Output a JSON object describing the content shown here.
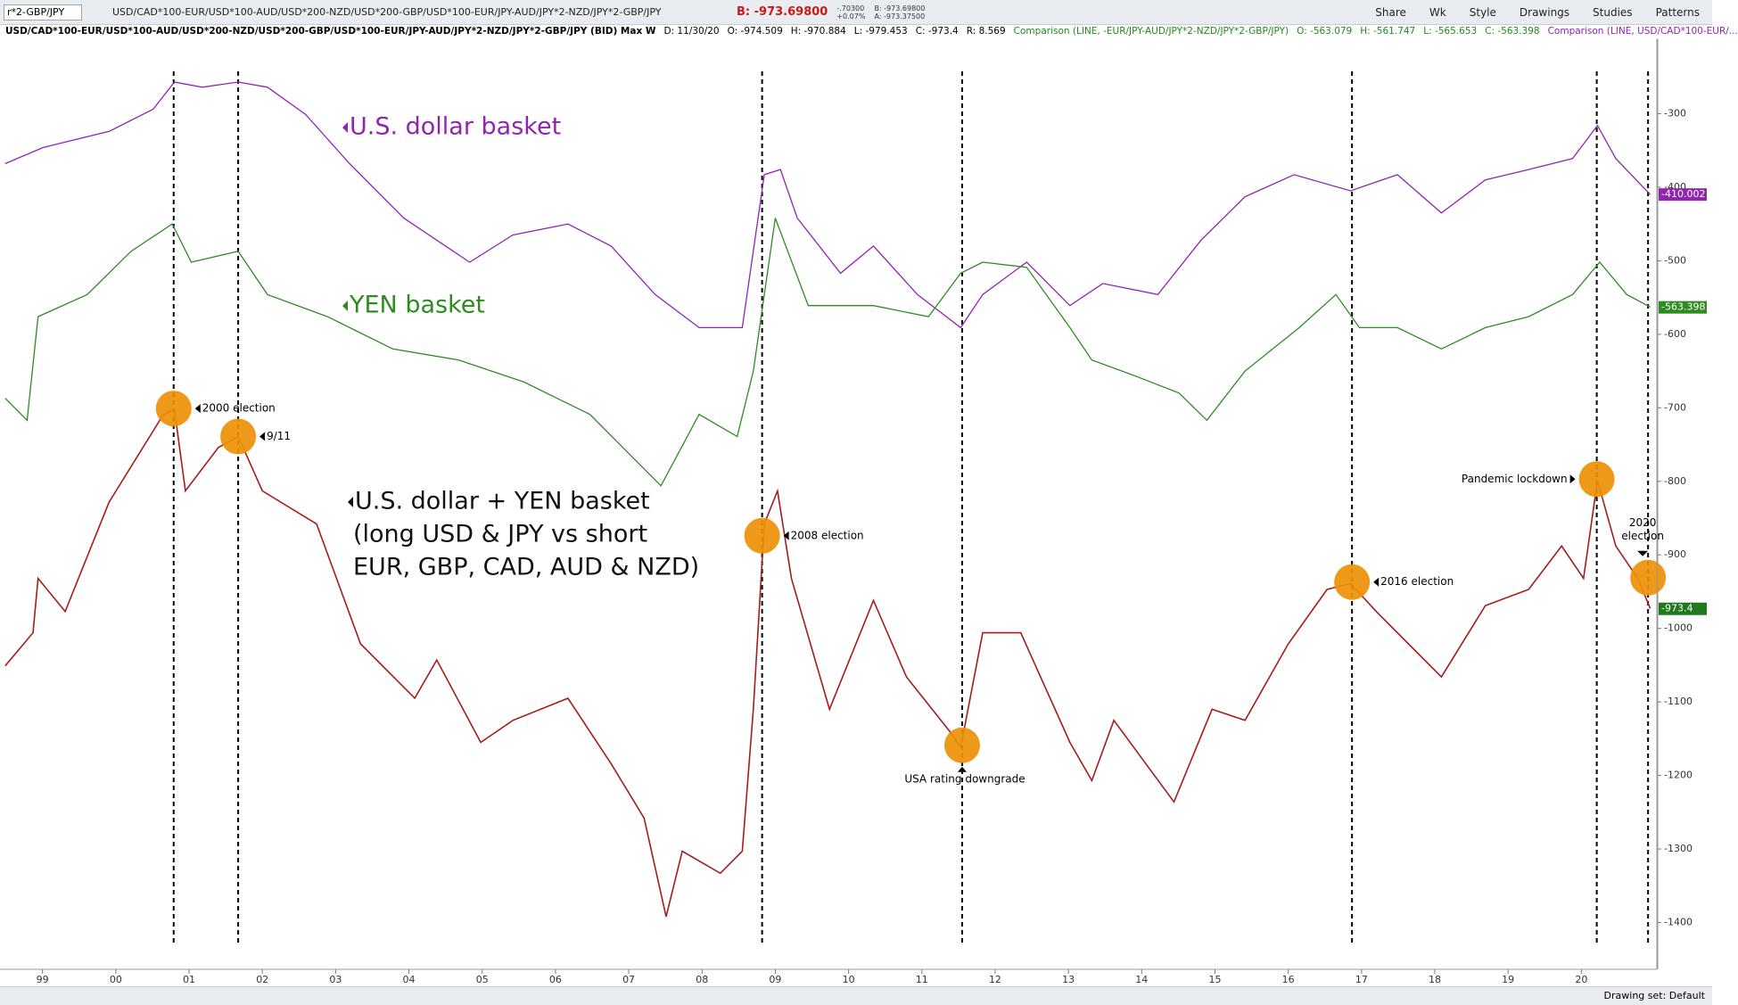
{
  "ui": {
    "symbol": "r*2-GBP/JPY",
    "description": "USD/CAD*100-EUR/USD*100-AUD/USD*200-NZD/USD*200-GBP/USD*100-EUR/JPY-AUD/JPY*2-NZD/JPY*2-GBP/JPY",
    "bid": "B: -973.69800",
    "change": "-.70300",
    "change_pct": "+0.07%",
    "bid_small": "B: -973.69800",
    "ask_small": "A: -973.37500",
    "buttons": [
      "Share",
      "Wk",
      "Style",
      "Drawings",
      "Studies",
      "Patterns"
    ],
    "study_title": "USD/CAD*100-EUR/USD*100-AUD/USD*200-NZD/USD*200-GBP/USD*100-EUR/JPY-AUD/JPY*2-NZD/JPY*2-GBP/JPY (BID) Max W",
    "info": [
      "D: 11/30/20",
      "O: -974.509",
      "H: -970.884",
      "L: -979.453",
      "C: -973.4",
      "R: 8.569"
    ],
    "comparison1": "Comparison (LINE, -EUR/JPY-AUD/JPY*2-NZD/JPY*2-GBP/JPY)",
    "comparison1_info": [
      "O: -563.079",
      "H: -561.747",
      "L: -565.653",
      "C: -563.398"
    ],
    "comparison2": "Comparison (LINE, USD/CAD*100-EUR/...",
    "drawing_set": "Drawing set: Default"
  },
  "chart_data": {
    "type": "line",
    "xlim": [
      1998.42,
      2021.03
    ],
    "ylim": [
      -1460,
      -200
    ],
    "xticks": [
      {
        "value": 1999,
        "label": "99"
      },
      {
        "value": 2000,
        "label": "00"
      },
      {
        "value": 2001,
        "label": "01"
      },
      {
        "value": 2002,
        "label": "02"
      },
      {
        "value": 2003,
        "label": "03"
      },
      {
        "value": 2004,
        "label": "04"
      },
      {
        "value": 2005,
        "label": "05"
      },
      {
        "value": 2006,
        "label": "06"
      },
      {
        "value": 2007,
        "label": "07"
      },
      {
        "value": 2008,
        "label": "08"
      },
      {
        "value": 2009,
        "label": "09"
      },
      {
        "value": 2010,
        "label": "10"
      },
      {
        "value": 2011,
        "label": "11"
      },
      {
        "value": 2012,
        "label": "12"
      },
      {
        "value": 2013,
        "label": "13"
      },
      {
        "value": 2014,
        "label": "14"
      },
      {
        "value": 2015,
        "label": "15"
      },
      {
        "value": 2016,
        "label": "16"
      },
      {
        "value": 2017,
        "label": "17"
      },
      {
        "value": 2018,
        "label": "18"
      },
      {
        "value": 2019,
        "label": "19"
      },
      {
        "value": 2020,
        "label": "20"
      }
    ],
    "yticks": [
      -300,
      -400,
      -500,
      -600,
      -700,
      -800,
      -900,
      -1000,
      -1100,
      -1200,
      -1300,
      -1400
    ],
    "grid": false,
    "series": [
      {
        "name": "U.S. dollar basket",
        "color": "#9025b0",
        "last": -410.002,
        "x": [
          1998.49,
          1999.01,
          1999.91,
          2000.51,
          2000.8,
          2001.18,
          2001.67,
          2002.07,
          2002.59,
          2003.19,
          2003.93,
          2004.83,
          2005.42,
          2006.17,
          2006.76,
          2007.36,
          2007.96,
          2008.55,
          2008.85,
          2009.07,
          2009.3,
          2009.89,
          2010.34,
          2010.94,
          2011.53,
          2011.83,
          2012.43,
          2013.02,
          2013.47,
          2014.22,
          2014.81,
          2015.41,
          2016.08,
          2016.85,
          2017.49,
          2018.09,
          2018.69,
          2019.28,
          2019.88,
          2020.22,
          2020.47,
          2020.94
        ],
        "values": [
          -368,
          -346,
          -324,
          -294,
          -257,
          -264,
          -257,
          -264,
          -301,
          -368,
          -442,
          -502,
          -465,
          -450,
          -480,
          -546,
          -591,
          -591,
          -383,
          -376,
          -442,
          -517,
          -480,
          -546,
          -591,
          -546,
          -502,
          -561,
          -531,
          -546,
          -472,
          -413,
          -383,
          -405,
          -383,
          -435,
          -390,
          -376,
          -361,
          -316,
          -361,
          -410
        ]
      },
      {
        "name": "YEN basket",
        "color": "#2e8b22",
        "last": -563.398,
        "x": [
          1998.49,
          1998.79,
          1998.94,
          1999.61,
          2000.21,
          2000.77,
          2001.03,
          2001.67,
          2002.07,
          2002.89,
          2003.78,
          2004.68,
          2005.57,
          2006.47,
          2007.44,
          2007.96,
          2008.48,
          2008.7,
          2009.0,
          2009.45,
          2010.34,
          2011.09,
          2011.53,
          2011.83,
          2012.43,
          2013.02,
          2013.32,
          2013.92,
          2014.51,
          2014.89,
          2015.41,
          2016.15,
          2016.65,
          2016.97,
          2017.49,
          2018.09,
          2018.69,
          2019.28,
          2019.88,
          2020.25,
          2020.62,
          2020.94
        ],
        "values": [
          -687,
          -717,
          -576,
          -546,
          -487,
          -450,
          -502,
          -487,
          -546,
          -576,
          -620,
          -635,
          -665,
          -709,
          -806,
          -709,
          -739,
          -650,
          -442,
          -561,
          -561,
          -576,
          -517,
          -502,
          -509,
          -591,
          -635,
          -657,
          -680,
          -717,
          -650,
          -591,
          -546,
          -591,
          -591,
          -620,
          -591,
          -576,
          -546,
          -502,
          -546,
          -563
        ]
      },
      {
        "name": "U.S. dollar + YEN basket",
        "note_lines": [
          "(long USD & JPY vs short",
          "EUR, GBP, CAD, AUD & NZD)"
        ],
        "color": "#a51c1c",
        "last": -973.4,
        "x": [
          1998.49,
          1998.87,
          1998.94,
          1999.31,
          1999.91,
          2000.65,
          2000.8,
          2000.95,
          2001.4,
          2001.67,
          2002.0,
          2002.74,
          2003.34,
          2004.08,
          2004.38,
          2004.98,
          2005.42,
          2006.17,
          2006.76,
          2007.21,
          2007.51,
          2007.73,
          2008.25,
          2008.55,
          2008.7,
          2008.85,
          2009.03,
          2009.22,
          2009.74,
          2010.34,
          2010.79,
          2011.38,
          2011.53,
          2011.83,
          2012.35,
          2013.02,
          2013.32,
          2013.62,
          2014.44,
          2014.96,
          2015.41,
          2016.0,
          2016.53,
          2016.85,
          2017.2,
          2017.64,
          2018.09,
          2018.69,
          2019.28,
          2019.73,
          2020.03,
          2020.22,
          2020.47,
          2020.77,
          2020.94
        ],
        "values": [
          -1051,
          -1006,
          -932,
          -977,
          -828,
          -709,
          -702,
          -813,
          -754,
          -739,
          -813,
          -858,
          -1021,
          -1095,
          -1043,
          -1155,
          -1125,
          -1095,
          -1184,
          -1258,
          -1392,
          -1303,
          -1333,
          -1303,
          -1110,
          -858,
          -813,
          -932,
          -1110,
          -962,
          -1066,
          -1140,
          -1162,
          -1006,
          -1006,
          -1155,
          -1207,
          -1125,
          -1236,
          -1110,
          -1125,
          -1021,
          -947,
          -939,
          -977,
          -1021,
          -1066,
          -969,
          -947,
          -888,
          -932,
          -799,
          -888,
          -932,
          -973
        ]
      }
    ],
    "events": [
      {
        "label": "2000 election",
        "x": 2000.79,
        "y": -701
      },
      {
        "label": "9/11",
        "x": 2001.67,
        "y": -739
      },
      {
        "label": "2008 election",
        "x": 2008.82,
        "y": -874
      },
      {
        "label": "USA rating downgrade",
        "x": 2011.55,
        "y": -1159
      },
      {
        "label": "2016 election",
        "x": 2016.87,
        "y": -937
      },
      {
        "label": "Pandemic lockdown",
        "x": 2020.21,
        "y": -797
      },
      {
        "label": "2020 election",
        "x": 2020.91,
        "y": -931
      }
    ]
  }
}
